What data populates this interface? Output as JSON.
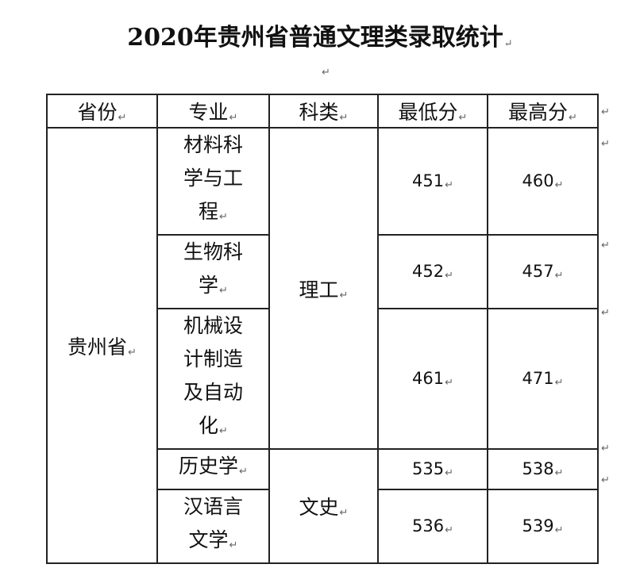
{
  "title": "2020年贵州省普通文理类录取统计",
  "table": {
    "headers": [
      "省份",
      "专业",
      "科类",
      "最低分",
      "最高分"
    ],
    "province": "贵州省",
    "categories": {
      "science": "理工",
      "arts": "文史"
    },
    "rows": [
      {
        "major_lines": [
          "材料科",
          "学与工",
          "程"
        ],
        "min": "451",
        "max": "460"
      },
      {
        "major_lines": [
          "生物科",
          "学"
        ],
        "min": "452",
        "max": "457"
      },
      {
        "major_lines": [
          "机械设",
          "计制造",
          "及自动",
          "化"
        ],
        "min": "461",
        "max": "471"
      },
      {
        "major_lines": [
          "历史学"
        ],
        "min": "535",
        "max": "538"
      },
      {
        "major_lines": [
          "汉语言",
          "文学"
        ],
        "min": "536",
        "max": "539"
      }
    ]
  }
}
